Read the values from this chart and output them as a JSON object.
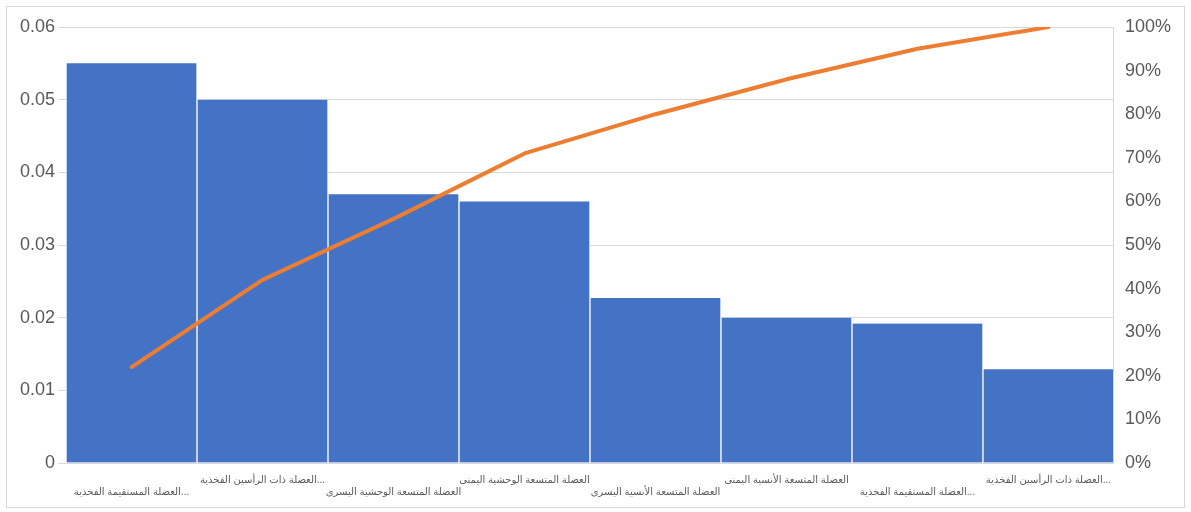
{
  "chart_data": {
    "type": "bar",
    "categories": [
      "العضلة المستقيمة الفخذية...",
      "العضلة ذات الرأسين الفخذية...",
      "العضلة المتسعة الوحشية اليسرى",
      "العضلة المتسعة الوحشية اليمنى",
      "العضلة المتسعة الأنسية اليسرى",
      "العضلة المتسعة الأنسية اليمنى",
      "العضلة المستقيمة الفخذية...",
      "العضلة ذات الرأسين الفخذية..."
    ],
    "series": [
      {
        "color": "#4472c4",
        "values": [
          0.055,
          0.05,
          0.037,
          0.036,
          0.0227,
          0.02,
          0.0192,
          0.0129
        ]
      },
      {
        "type": "line",
        "axis": "y2",
        "color": "#ed7d31",
        "values": [
          22,
          42,
          56,
          71,
          80,
          88,
          95,
          100
        ]
      }
    ],
    "ylim": [
      0,
      0.06
    ],
    "yticks": [
      0,
      0.01,
      0.02,
      0.03,
      0.04,
      0.05,
      0.06
    ],
    "y2lim": [
      0,
      100
    ],
    "y2ticks": [
      {
        "value": 0,
        "label": "0%"
      },
      {
        "value": 10,
        "label": "10%"
      },
      {
        "value": 20,
        "label": "20%"
      },
      {
        "value": 30,
        "label": "30%"
      },
      {
        "value": 40,
        "label": "40%"
      },
      {
        "value": 50,
        "label": "50%"
      },
      {
        "value": 60,
        "label": "60%"
      },
      {
        "value": 70,
        "label": "70%"
      },
      {
        "value": 80,
        "label": "80%"
      },
      {
        "value": 90,
        "label": "90%"
      },
      {
        "value": 100,
        "label": "100%"
      }
    ],
    "grid": "y",
    "legend": false,
    "marker": "none"
  }
}
